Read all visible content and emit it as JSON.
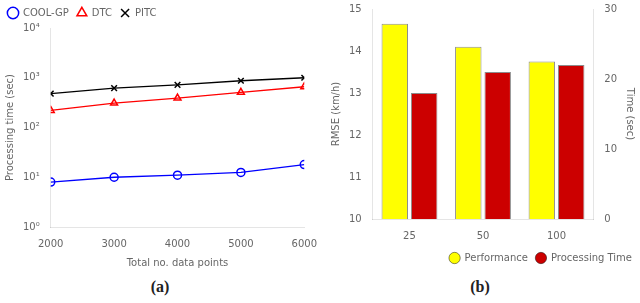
{
  "chart_data": [
    {
      "type": "line",
      "x": [
        2000,
        3000,
        4000,
        5000,
        6000
      ],
      "series": [
        {
          "name": "COOL-GP",
          "color": "blue",
          "marker": "circle",
          "values": [
            8.0,
            10.0,
            11.0,
            12.5,
            18.0
          ]
        },
        {
          "name": "DTC",
          "color": "red",
          "marker": "triangle",
          "values": [
            220,
            310,
            390,
            510,
            660
          ]
        },
        {
          "name": "PITC",
          "color": "black",
          "marker": "x",
          "values": [
            480,
            620,
            720,
            870,
            1000
          ]
        }
      ],
      "xlabel": "Total no. data points",
      "ylabel": "Processing time (sec)",
      "xlim": [
        2000,
        6000
      ],
      "xticks": [
        2000,
        3000,
        4000,
        5000,
        6000
      ],
      "ylim": [
        1,
        10000
      ],
      "yticks": [
        {
          "value": 1,
          "label": "10⁰"
        },
        {
          "value": 10,
          "label": "10¹"
        },
        {
          "value": 100,
          "label": "10²"
        },
        {
          "value": 1000,
          "label": "10³"
        },
        {
          "value": 10000,
          "label": "10⁴"
        }
      ],
      "log": "y",
      "grid": false,
      "legend": "upper left",
      "annotations": [
        "(a)"
      ]
    },
    {
      "type": "bar",
      "categories": [
        "25",
        "50",
        "100"
      ],
      "series": [
        {
          "name": "Performance",
          "color": "#ffff00",
          "values": [
            14.65,
            14.1,
            13.75
          ]
        },
        {
          "name": "Processing Time",
          "color": "#cc0000",
          "axis": "y2",
          "values": [
            18.0,
            21.0,
            22.0
          ]
        }
      ],
      "ylabel": "RMSE (km/h)",
      "y2label": "Time (sec)",
      "ylim": [
        10,
        15
      ],
      "yticks": [
        10,
        11,
        12,
        13,
        14,
        15
      ],
      "y2lim": [
        0,
        30
      ],
      "y2ticks": [
        0,
        10,
        20,
        30
      ],
      "grid": false,
      "legend": "lower right",
      "annotations": [
        "(b)"
      ]
    }
  ]
}
